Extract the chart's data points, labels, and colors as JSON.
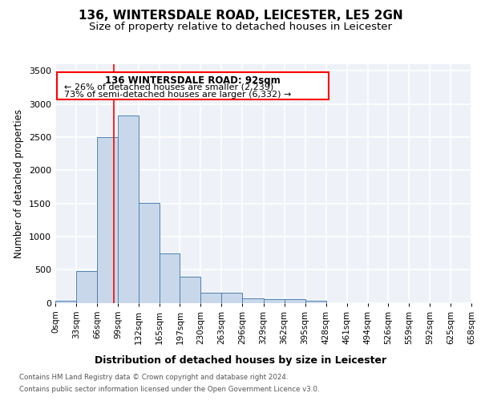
{
  "title1": "136, WINTERSDALE ROAD, LEICESTER, LE5 2GN",
  "title2": "Size of property relative to detached houses in Leicester",
  "xlabel": "Distribution of detached houses by size in Leicester",
  "ylabel": "Number of detached properties",
  "bar_color": "#c8d8ea",
  "bar_edge_color": "#5080b0",
  "bin_edges": [
    0,
    33,
    66,
    99,
    132,
    165,
    197,
    230,
    263,
    296,
    329,
    362,
    395,
    428,
    461,
    494,
    526,
    559,
    592,
    625,
    658
  ],
  "bin_labels": [
    "0sqm",
    "33sqm",
    "66sqm",
    "99sqm",
    "132sqm",
    "165sqm",
    "197sqm",
    "230sqm",
    "263sqm",
    "296sqm",
    "329sqm",
    "362sqm",
    "395sqm",
    "428sqm",
    "461sqm",
    "494sqm",
    "526sqm",
    "559sqm",
    "592sqm",
    "625sqm",
    "658sqm"
  ],
  "bar_heights": [
    30,
    480,
    2500,
    2820,
    1510,
    740,
    390,
    150,
    150,
    70,
    50,
    50,
    30,
    0,
    0,
    0,
    0,
    0,
    0,
    0
  ],
  "ylim": [
    0,
    3600
  ],
  "yticks": [
    0,
    500,
    1000,
    1500,
    2000,
    2500,
    3000,
    3500
  ],
  "property_line_x": 92,
  "annotation_text_line1": "136 WINTERSDALE ROAD: 92sqm",
  "annotation_text_line2": "← 26% of detached houses are smaller (2,239)",
  "annotation_text_line3": "73% of semi-detached houses are larger (6,332) →",
  "footer_line1": "Contains HM Land Registry data © Crown copyright and database right 2024.",
  "footer_line2": "Contains public sector information licensed under the Open Government Licence v3.0.",
  "bg_color": "#eef2f8",
  "grid_color": "#ffffff",
  "title1_fontsize": 11,
  "title2_fontsize": 9.5,
  "xlabel_fontsize": 9,
  "ylabel_fontsize": 8.5,
  "tick_fontsize": 7.5,
  "annotation_fontsize": 8.5
}
